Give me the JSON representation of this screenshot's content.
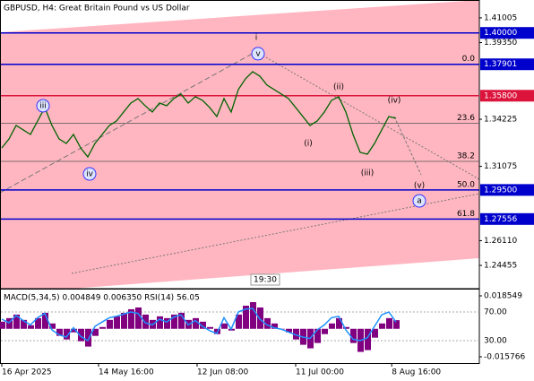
{
  "chart_data": {
    "type": "line",
    "title": "GBPUSD, H4:  Great Britain Pound vs US Dollar",
    "time_marker": "19:30",
    "color": "#006400",
    "values": [
      1.3231,
      1.3291,
      1.3381,
      1.3351,
      1.3321,
      1.3411,
      1.3501,
      1.3381,
      1.3291,
      1.3261,
      1.3321,
      1.3231,
      1.3171,
      1.3261,
      1.3321,
      1.3381,
      1.3411,
      1.3471,
      1.3531,
      1.3561,
      1.3513,
      1.3471,
      1.3531,
      1.3513,
      1.3561,
      1.3591,
      1.3531,
      1.3573,
      1.3549,
      1.3501,
      1.3441,
      1.3561,
      1.3471,
      1.3621,
      1.3693,
      1.3741,
      1.3711,
      1.3651,
      1.3621,
      1.3591,
      1.3561,
      1.3501,
      1.3441,
      1.3381,
      1.3411,
      1.3471,
      1.3549,
      1.3573,
      1.3471,
      1.3321,
      1.3201,
      1.3189,
      1.3261,
      1.3351,
      1.3441,
      1.3429
    ],
    "xlim": [
      0,
      66.625
    ],
    "xticks": [
      {
        "value": 0,
        "label": "16 Apr 2025"
      },
      {
        "value": 13.5,
        "label": "14 May 16:00"
      },
      {
        "value": 27.25,
        "label": "12 Jun 08:00"
      },
      {
        "value": 41,
        "label": "11 Jul 00:00"
      },
      {
        "value": 54.4,
        "label": "8 Aug 16:00"
      }
    ],
    "ylim": [
      1.229,
      1.422
    ],
    "yticks": [
      1.41005,
      {
        "value": 1.3935,
        "label": "1.39350"
      },
      1.34225,
      1.31075,
      {
        "value": 1.2611,
        "label": "1.26110"
      },
      1.24455
    ],
    "levels": [
      {
        "value": 1.4,
        "label": "1.40000",
        "color": "#0000cd"
      },
      {
        "value": 1.37901,
        "label": "1.37901",
        "color": "#0000cd"
      },
      {
        "value": 1.358,
        "label": "1.35800",
        "color": "#dc143c"
      },
      {
        "value": 1.295,
        "label": "1.29500",
        "color": "#0000cd"
      },
      {
        "value": 1.27556,
        "label": "1.27556",
        "color": "#0000cd"
      }
    ],
    "fib": [
      {
        "value": 1.37901,
        "label": "0.0"
      },
      {
        "value": 1.3395,
        "label": "23.6"
      },
      {
        "value": 1.3141,
        "label": "38.2"
      },
      {
        "value": 1.295,
        "label": "50.0"
      },
      {
        "value": 1.27556,
        "label": "61.8"
      }
    ],
    "annotations": [
      {
        "text": "i",
        "x": 35.5,
        "y": 1.3969,
        "color": "#a52a2a",
        "circled": false
      },
      {
        "text": "v",
        "x": 35.75,
        "y": 1.3861,
        "color": "#3333ff",
        "circled": true
      },
      {
        "text": "iii",
        "x": 5.75,
        "y": 1.3513,
        "color": "#3333ff",
        "circled": true
      },
      {
        "text": "iv",
        "x": 12.25,
        "y": 1.3057,
        "color": "#3333ff",
        "circled": true
      },
      {
        "text": "(ii)",
        "x": 47,
        "y": 1.3639,
        "color": "#c0392b",
        "circled": false
      },
      {
        "text": "(i)",
        "x": 42.75,
        "y": 1.3261,
        "color": "#c0392b",
        "circled": false
      },
      {
        "text": "(iii)",
        "x": 51,
        "y": 1.3063,
        "color": "#c0392b",
        "circled": false
      },
      {
        "text": "(iv)",
        "x": 54.75,
        "y": 1.3549,
        "color": "#c0392b",
        "circled": false
      },
      {
        "text": "(v)",
        "x": 58.25,
        "y": 1.2979,
        "color": "#c0392b",
        "circled": false
      },
      {
        "text": "a",
        "x": 58.25,
        "y": 1.2877,
        "color": "#3333ff",
        "circled": true
      }
    ],
    "indicator": {
      "title": "MACD(5,34,5) 0.004849 0.006350 RSI(14) 56.05",
      "macd": {
        "color": "#800080",
        "lim": [
          -0.015766,
          0.018549
        ],
        "ticks": [
          0.018549,
          -0.015766
        ],
        "values": [
          0.004,
          0.006,
          0.008,
          0.005,
          0.002,
          0.006,
          0.009,
          0.003,
          -0.004,
          -0.006,
          -0.002,
          -0.007,
          -0.01,
          -0.004,
          0.001,
          0.005,
          0.007,
          0.009,
          0.011,
          0.012,
          0.008,
          0.005,
          0.007,
          0.006,
          0.008,
          0.009,
          0.005,
          0.006,
          0.004,
          0.001,
          -0.003,
          0.003,
          -0.001,
          0.008,
          0.013,
          0.015,
          0.012,
          0.006,
          0.003,
          0,
          -0.002,
          -0.006,
          -0.009,
          -0.011,
          -0.008,
          -0.003,
          0.003,
          0.006,
          0.001,
          -0.008,
          -0.013,
          -0.012,
          -0.005,
          0.003,
          0.006,
          0.004849
        ]
      },
      "rsi": {
        "color": "#1e90ff",
        "lim": [
          0,
          100
        ],
        "ticks": [
          {
            "value": 70,
            "label": "70.00"
          },
          {
            "value": 30,
            "label": "30.00"
          }
        ],
        "values": [
          60,
          55,
          65,
          58,
          52,
          62,
          68,
          45,
          38,
          35,
          48,
          36,
          30,
          50,
          56,
          62,
          64,
          67,
          70,
          68,
          55,
          52,
          60,
          56,
          63,
          66,
          52,
          58,
          50,
          44,
          40,
          62,
          46,
          70,
          74,
          75,
          60,
          52,
          48,
          46,
          42,
          38,
          35,
          33,
          45,
          52,
          62,
          64,
          45,
          32,
          30,
          34,
          50,
          66,
          70,
          56.05
        ]
      }
    }
  }
}
